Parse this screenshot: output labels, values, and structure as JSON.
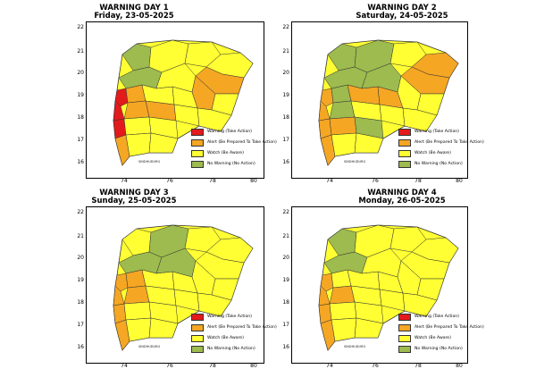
{
  "legend": {
    "warning": {
      "label": "Warning (Take Action)",
      "color": "#e31a1c"
    },
    "alert": {
      "label": "Alert (Be Prepared To Take Action)",
      "color": "#f5a623"
    },
    "watch": {
      "label": "Watch (Be Aware)",
      "color": "#ffff33"
    },
    "nowarning": {
      "label": "No Warning (No Action)",
      "color": "#9dbb4f"
    }
  },
  "axes": {
    "y_ticks": [
      "22",
      "21",
      "20",
      "19",
      "18",
      "17",
      "16"
    ],
    "x_ticks": [
      "74",
      "76",
      "78",
      "80"
    ]
  },
  "place_labels": {
    "sindhudurg": "SINDHUDURG"
  },
  "panels": [
    {
      "title": "WARNING DAY 1",
      "date": "Friday, 23-05-2025",
      "coast": [
        "warning",
        "warning",
        "warning",
        "alert"
      ],
      "inland_west": [
        "alert",
        "alert",
        "watch",
        "watch"
      ],
      "north": [
        "nowarning",
        "nowarning",
        "watch",
        "watch"
      ],
      "center": [
        "watch",
        "alert",
        "watch",
        "watch"
      ],
      "east": [
        "watch",
        "alert",
        "alert",
        "watch"
      ],
      "south_east": [
        "watch",
        "watch",
        "watch",
        "watch"
      ]
    },
    {
      "title": "WARNING DAY 2",
      "date": "Saturday, 24-05-2025",
      "coast": [
        "alert",
        "alert",
        "alert",
        "alert"
      ],
      "inland_west": [
        "nowarning",
        "nowarning",
        "alert",
        "watch"
      ],
      "north": [
        "nowarning",
        "nowarning",
        "nowarning",
        "watch"
      ],
      "center": [
        "alert",
        "watch",
        "nowarning",
        "alert"
      ],
      "east": [
        "alert",
        "alert",
        "watch",
        "watch"
      ],
      "south_east": [
        "watch",
        "nowarning",
        "watch",
        "watch"
      ]
    },
    {
      "title": "WARNING DAY 3",
      "date": "Sunday, 25-05-2025",
      "coast": [
        "alert",
        "alert",
        "alert",
        "alert"
      ],
      "inland_west": [
        "alert",
        "alert",
        "watch",
        "watch"
      ],
      "north": [
        "watch",
        "nowarning",
        "nowarning",
        "watch"
      ],
      "center": [
        "watch",
        "watch",
        "nowarning",
        "watch"
      ],
      "east": [
        "watch",
        "watch",
        "watch",
        "watch"
      ],
      "south_east": [
        "watch",
        "watch",
        "watch",
        "watch"
      ]
    },
    {
      "title": "WARNING DAY 4",
      "date": "Monday, 26-05-2025",
      "coast": [
        "alert",
        "alert",
        "alert",
        "alert"
      ],
      "inland_west": [
        "watch",
        "alert",
        "watch",
        "watch"
      ],
      "north": [
        "nowarning",
        "nowarning",
        "watch",
        "watch"
      ],
      "center": [
        "watch",
        "watch",
        "watch",
        "watch"
      ],
      "east": [
        "watch",
        "watch",
        "watch",
        "watch"
      ],
      "south_east": [
        "watch",
        "watch",
        "watch",
        "watch"
      ]
    }
  ]
}
